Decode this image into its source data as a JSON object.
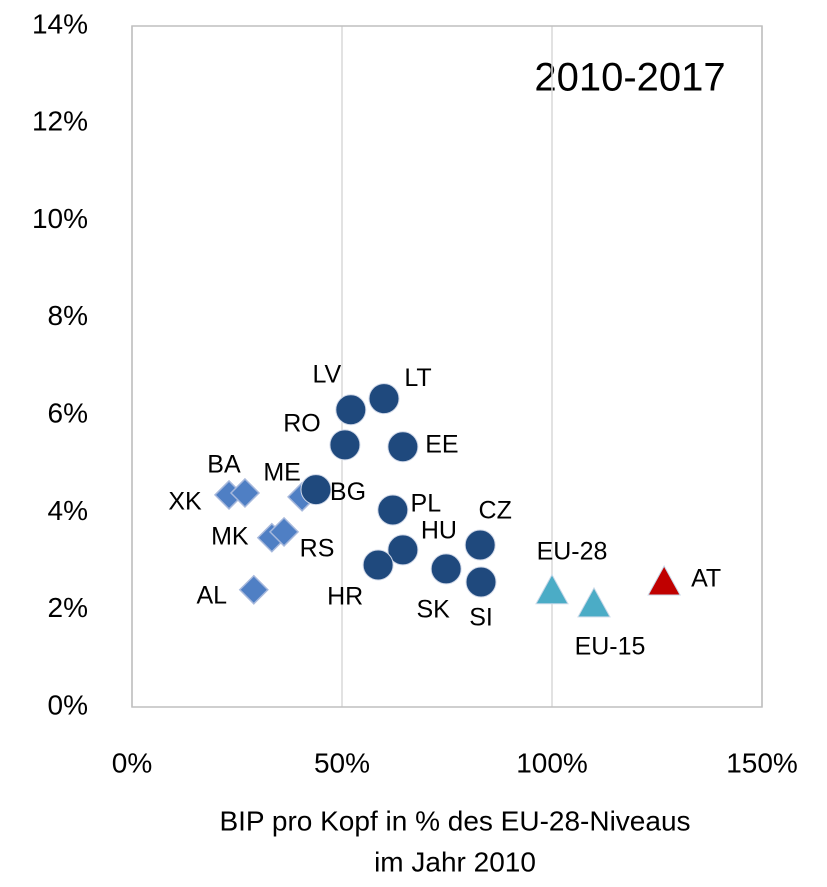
{
  "chart_data": {
    "type": "scatter",
    "annotation": "2010-2017",
    "xlabel": [
      "BIP pro Kopf in % des EU-28-Niveaus",
      "im Jahr 2010"
    ],
    "xlim": [
      0,
      150
    ],
    "xticks": [
      {
        "value": 0,
        "label": "0%"
      },
      {
        "value": 50,
        "label": "50%"
      },
      {
        "value": 100,
        "label": "100%"
      },
      {
        "value": 150,
        "label": "150%"
      }
    ],
    "ylim": [
      0,
      14
    ],
    "yticks": [
      {
        "value": 0,
        "label": "0%"
      },
      {
        "value": 2,
        "label": "2%"
      },
      {
        "value": 4,
        "label": "4%"
      },
      {
        "value": 6,
        "label": "6%"
      },
      {
        "value": 8,
        "label": "8%"
      },
      {
        "value": 10,
        "label": "10%"
      },
      {
        "value": 12,
        "label": "12%"
      },
      {
        "value": 14,
        "label": "14%"
      }
    ],
    "grid": true,
    "series": [
      {
        "marker": "diamond",
        "color": "#4f7fc4",
        "labels": [
          "XK",
          "BA",
          "ME",
          "MK",
          "RS",
          "AL"
        ],
        "x": [
          23.1,
          26.9,
          40.5,
          33.3,
          36.2,
          29.0
        ],
        "values": [
          4.36,
          4.4,
          4.32,
          3.48,
          3.6,
          2.41
        ]
      },
      {
        "marker": "circle",
        "color": "#1f497d",
        "labels": [
          "LV",
          "LT",
          "RO",
          "EE",
          "BG",
          "PL",
          "CZ",
          "HU",
          "HR",
          "SK",
          "SI"
        ],
        "x": [
          52.1,
          60.0,
          50.7,
          64.5,
          43.8,
          62.1,
          82.9,
          64.5,
          58.6,
          74.8,
          83.1
        ],
        "values": [
          6.11,
          6.34,
          5.39,
          5.35,
          4.47,
          4.05,
          3.33,
          3.23,
          2.92,
          2.84,
          2.57
        ]
      },
      {
        "marker": "triangle",
        "color": "#4bacc6",
        "labels": [
          "EU-28",
          "EU-15"
        ],
        "x": [
          100,
          110
        ],
        "values": [
          2.37,
          2.1
        ]
      },
      {
        "marker": "triangle",
        "color": "#c00000",
        "labels": [
          "AT"
        ],
        "x": [
          126.7
        ],
        "values": [
          2.55
        ]
      }
    ]
  }
}
